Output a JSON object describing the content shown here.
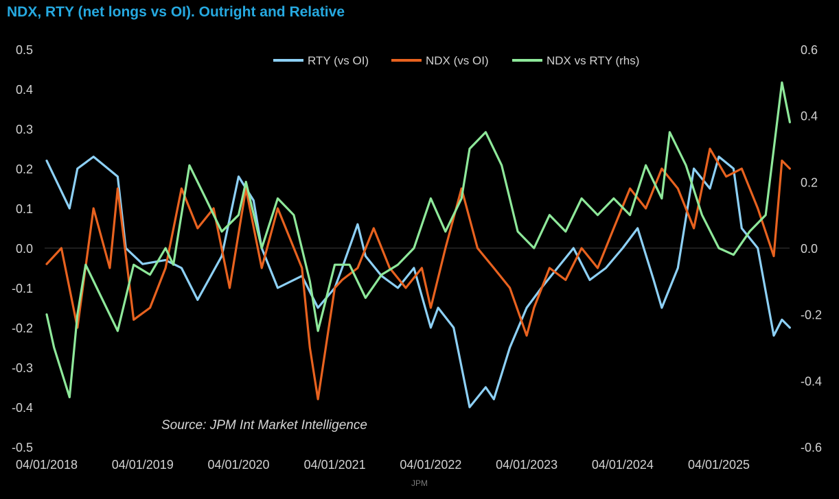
{
  "credit": "JPM",
  "chart_data": {
    "type": "line",
    "title": "NDX, RTY (net longs vs OI). Outright and Relative",
    "source": "Source: JPM Int Market Intelligence",
    "y_left": {
      "range": [
        -0.5,
        0.5
      ],
      "ticks": [
        "0.5",
        "0.4",
        "0.3",
        "0.2",
        "0.1",
        "0.0",
        "-0.1",
        "-0.2",
        "-0.3",
        "-0.4",
        "-0.5"
      ]
    },
    "y_right": {
      "range": [
        -0.6,
        0.6
      ],
      "ticks": [
        "0.6",
        "0.4",
        "0.2",
        "0.0",
        "-0.2",
        "-0.4",
        "-0.6"
      ]
    },
    "x_ticks": [
      "04/01/2018",
      "04/01/2019",
      "04/01/2020",
      "04/01/2021",
      "04/01/2022",
      "04/01/2023",
      "04/01/2024",
      "04/01/2025"
    ],
    "legend_position": "top-center",
    "grid": false,
    "series": [
      {
        "name": "RTY (vs OI)",
        "color": "#8dd0f5",
        "axis": "left",
        "x": [
          "2018-01-04",
          "2018-04-01",
          "2018-05-01",
          "2018-07-01",
          "2018-10-01",
          "2018-11-01",
          "2019-01-04",
          "2019-04-01",
          "2019-06-01",
          "2019-08-01",
          "2019-11-01",
          "2020-01-04",
          "2020-03-01",
          "2020-04-01",
          "2020-06-01",
          "2020-09-01",
          "2020-11-01",
          "2021-01-04",
          "2021-02-01",
          "2021-04-01",
          "2021-05-01",
          "2021-07-01",
          "2021-09-01",
          "2021-11-01",
          "2022-01-04",
          "2022-02-01",
          "2022-04-01",
          "2022-06-01",
          "2022-08-01",
          "2022-09-01",
          "2022-11-01",
          "2023-01-04",
          "2023-03-01",
          "2023-05-01",
          "2023-07-01",
          "2023-09-01",
          "2023-11-01",
          "2024-01-04",
          "2024-03-01",
          "2024-05-01",
          "2024-06-01",
          "2024-08-01",
          "2024-10-01",
          "2024-12-01",
          "2025-01-04",
          "2025-03-01",
          "2025-04-01",
          "2025-06-01",
          "2025-08-01",
          "2025-09-01",
          "2025-10-01"
        ],
        "y": [
          0.22,
          0.1,
          0.2,
          0.23,
          0.18,
          0.0,
          -0.04,
          -0.03,
          -0.05,
          -0.13,
          -0.02,
          0.18,
          0.12,
          0.0,
          -0.1,
          -0.07,
          -0.15,
          -0.1,
          -0.05,
          0.06,
          -0.02,
          -0.07,
          -0.1,
          -0.05,
          -0.2,
          -0.15,
          -0.2,
          -0.4,
          -0.35,
          -0.38,
          -0.25,
          -0.15,
          -0.1,
          -0.05,
          0.0,
          -0.08,
          -0.05,
          0.0,
          0.05,
          -0.08,
          -0.15,
          -0.05,
          0.2,
          0.15,
          0.23,
          0.2,
          0.05,
          0.0,
          -0.22,
          -0.18,
          -0.2
        ]
      },
      {
        "name": "NDX (vs OI)",
        "color": "#e8621f",
        "axis": "left",
        "x": [
          "2018-01-04",
          "2018-03-01",
          "2018-05-01",
          "2018-07-01",
          "2018-09-01",
          "2018-10-01",
          "2018-12-01",
          "2019-02-01",
          "2019-04-01",
          "2019-06-01",
          "2019-08-01",
          "2019-10-01",
          "2019-12-01",
          "2020-02-01",
          "2020-04-01",
          "2020-06-01",
          "2020-09-01",
          "2020-10-01",
          "2020-11-01",
          "2021-01-04",
          "2021-02-01",
          "2021-04-01",
          "2021-06-01",
          "2021-08-01",
          "2021-10-01",
          "2021-12-01",
          "2022-01-04",
          "2022-03-01",
          "2022-05-01",
          "2022-07-01",
          "2022-09-01",
          "2022-11-01",
          "2023-01-04",
          "2023-02-01",
          "2023-04-01",
          "2023-06-01",
          "2023-08-01",
          "2023-10-01",
          "2023-12-01",
          "2024-02-01",
          "2024-04-01",
          "2024-06-01",
          "2024-08-01",
          "2024-10-01",
          "2024-12-01",
          "2025-02-01",
          "2025-04-01",
          "2025-06-01",
          "2025-08-01",
          "2025-09-01",
          "2025-10-01"
        ],
        "y": [
          -0.04,
          0.0,
          -0.2,
          0.1,
          -0.05,
          0.15,
          -0.18,
          -0.15,
          -0.05,
          0.15,
          0.05,
          0.1,
          -0.1,
          0.15,
          -0.05,
          0.1,
          -0.05,
          -0.25,
          -0.38,
          -0.1,
          -0.08,
          -0.05,
          0.05,
          -0.05,
          -0.1,
          -0.05,
          -0.15,
          0.0,
          0.15,
          0.0,
          -0.05,
          -0.1,
          -0.22,
          -0.15,
          -0.05,
          -0.08,
          0.0,
          -0.05,
          0.05,
          0.15,
          0.1,
          0.2,
          0.15,
          0.05,
          0.25,
          0.18,
          0.2,
          0.1,
          -0.02,
          0.22,
          0.2
        ]
      },
      {
        "name": "NDX vs RTY (rhs)",
        "color": "#8ee89a",
        "axis": "right",
        "x": [
          "2018-01-04",
          "2018-02-01",
          "2018-04-01",
          "2018-05-01",
          "2018-06-01",
          "2018-08-01",
          "2018-10-01",
          "2018-12-01",
          "2019-02-01",
          "2019-04-01",
          "2019-05-01",
          "2019-07-01",
          "2019-09-01",
          "2019-11-01",
          "2020-01-04",
          "2020-02-01",
          "2020-04-01",
          "2020-06-01",
          "2020-08-01",
          "2020-10-01",
          "2020-11-01",
          "2021-01-04",
          "2021-03-01",
          "2021-05-01",
          "2021-07-01",
          "2021-09-01",
          "2021-11-01",
          "2022-01-04",
          "2022-03-01",
          "2022-05-01",
          "2022-06-01",
          "2022-08-01",
          "2022-10-01",
          "2022-12-01",
          "2023-02-01",
          "2023-04-01",
          "2023-06-01",
          "2023-08-01",
          "2023-10-01",
          "2023-12-01",
          "2024-02-01",
          "2024-04-01",
          "2024-06-01",
          "2024-07-01",
          "2024-09-01",
          "2024-11-01",
          "2025-01-04",
          "2025-03-01",
          "2025-05-01",
          "2025-07-01",
          "2025-09-01",
          "2025-10-01"
        ],
        "y": [
          -0.2,
          -0.3,
          -0.45,
          -0.2,
          -0.05,
          -0.15,
          -0.25,
          -0.05,
          -0.08,
          0.0,
          -0.05,
          0.25,
          0.15,
          0.05,
          0.1,
          0.2,
          0.0,
          0.15,
          0.1,
          -0.1,
          -0.25,
          -0.05,
          -0.05,
          -0.15,
          -0.08,
          -0.05,
          0.0,
          0.15,
          0.05,
          0.15,
          0.3,
          0.35,
          0.25,
          0.05,
          0.0,
          0.1,
          0.05,
          0.15,
          0.1,
          0.15,
          0.1,
          0.25,
          0.15,
          0.35,
          0.25,
          0.1,
          0.0,
          -0.02,
          0.05,
          0.1,
          0.5,
          0.38
        ]
      }
    ]
  }
}
